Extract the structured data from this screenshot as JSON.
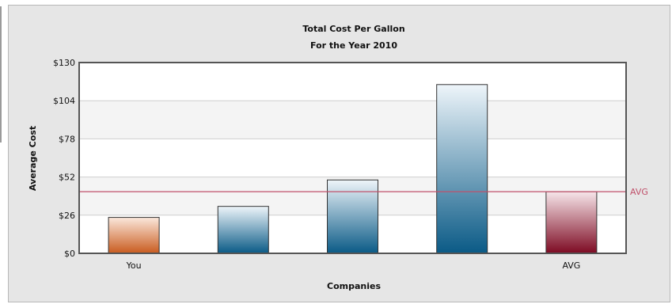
{
  "chart_data": {
    "type": "bar",
    "title": "Total Cost Per Gallon",
    "subtitle": "For the Year 2010",
    "xlabel": "Companies",
    "ylabel": "Average Cost",
    "categories": [
      "You",
      "",
      "",
      "",
      "AVG"
    ],
    "values": [
      24.5,
      32,
      50,
      115,
      42
    ],
    "bar_styles": [
      "orange",
      "blue",
      "blue",
      "blue",
      "red"
    ],
    "yticks": [
      "$0",
      "$26",
      "$52",
      "$78",
      "$104",
      "$130"
    ],
    "ytick_values": [
      0,
      26,
      52,
      78,
      104,
      130
    ],
    "ylim": [
      0,
      130
    ],
    "reference_line": {
      "label": "AVG",
      "value": 42
    },
    "grid": true,
    "colors": {
      "orange_top": "#fbe8dc",
      "orange_bottom": "#c95b1f",
      "blue_top": "#eef5fa",
      "blue_bottom": "#0a5a86",
      "red_top": "#f7e6ea",
      "red_bottom": "#7d0a22",
      "avg_line": "#c0506a"
    }
  }
}
